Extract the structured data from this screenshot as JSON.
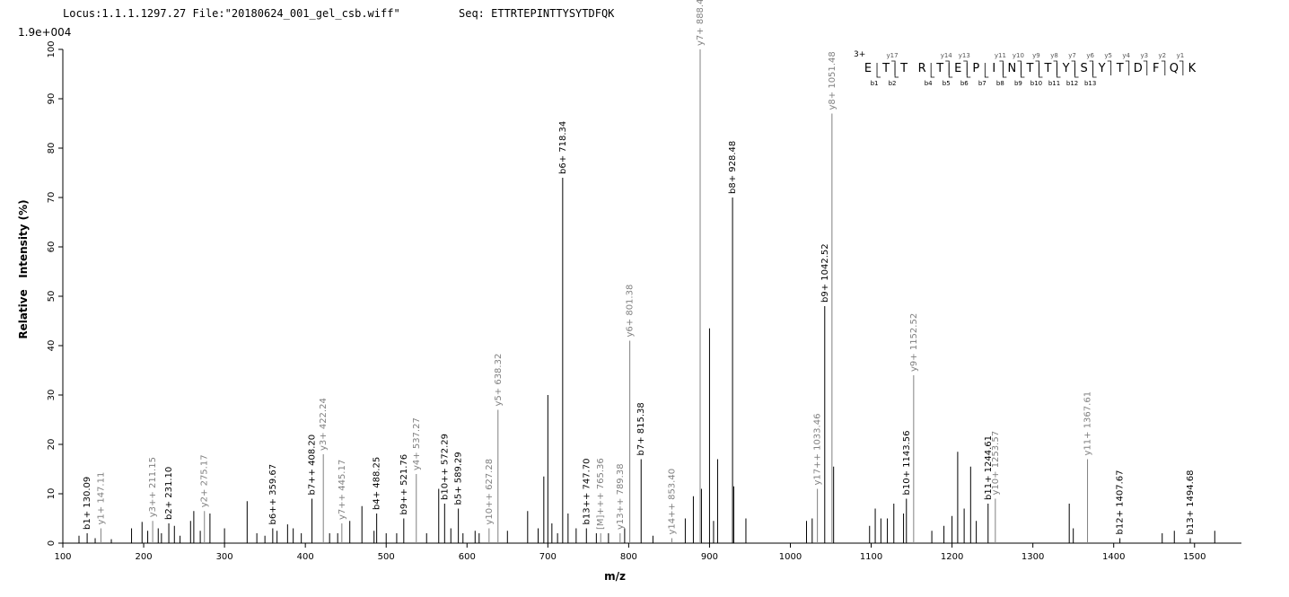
{
  "chart_data": {
    "type": "spectrum",
    "header_left": "Locus:1.1.1.1297.27 File:\"20180624_001_gel_csb.wiff\"",
    "header_right": "Seq: ETTRTEPINTTYSYTDFQK",
    "scale_label": "1.9e+004",
    "xlabel": "m/z",
    "ylabel": "Relative   Intensity (%)",
    "xlim": [
      100,
      1558
    ],
    "ylim": [
      0,
      100
    ],
    "xticks": [
      100,
      200,
      300,
      400,
      500,
      600,
      700,
      800,
      900,
      1000,
      1100,
      1200,
      1300,
      1400,
      1500
    ],
    "yticks": [
      0,
      10,
      20,
      30,
      40,
      50,
      60,
      70,
      80,
      90,
      100
    ],
    "peaks": [
      {
        "label": "b1+ 130.09",
        "x": 130.09,
        "value": 2,
        "color": "#000000"
      },
      {
        "label": "y1+ 147.11",
        "x": 147.11,
        "value": 3,
        "color": "#808080"
      },
      {
        "label": "y3++ 211.15",
        "x": 211.15,
        "value": 4.5,
        "color": "#808080"
      },
      {
        "label": "b2+ 231.10",
        "x": 231.1,
        "value": 4,
        "color": "#000000"
      },
      {
        "label": "y2+ 275.17",
        "x": 275.17,
        "value": 6.5,
        "color": "#808080"
      },
      {
        "label": "b6++ 359.67",
        "x": 359.67,
        "value": 3,
        "color": "#000000"
      },
      {
        "label": "b7++ 408.20",
        "x": 408.2,
        "value": 9,
        "color": "#000000"
      },
      {
        "label": "y3+ 422.24",
        "x": 422.24,
        "value": 18,
        "color": "#808080"
      },
      {
        "label": "y7++ 445.17",
        "x": 445.17,
        "value": 4,
        "color": "#808080"
      },
      {
        "label": "b4+ 488.25",
        "x": 488.25,
        "value": 6,
        "color": "#000000"
      },
      {
        "label": "b9++ 521.76",
        "x": 521.76,
        "value": 5,
        "color": "#000000"
      },
      {
        "label": "y4+ 537.27",
        "x": 537.27,
        "value": 14,
        "color": "#808080"
      },
      {
        "label": "b10++ 572.29",
        "x": 572.29,
        "value": 8,
        "color": "#000000"
      },
      {
        "label": "b5+ 589.29",
        "x": 589.29,
        "value": 7,
        "color": "#000000"
      },
      {
        "label": "y10++ 627.28",
        "x": 627.28,
        "value": 3,
        "color": "#808080"
      },
      {
        "label": "y5+ 638.32",
        "x": 638.32,
        "value": 27,
        "color": "#808080"
      },
      {
        "label": "b6+ 718.34",
        "x": 718.34,
        "value": 74,
        "color": "#000000"
      },
      {
        "label": "b13++ 747.70",
        "x": 747.7,
        "value": 3,
        "color": "#000000"
      },
      {
        "label": "[M]+++ 765.36",
        "x": 765.36,
        "value": 2,
        "color": "#808080"
      },
      {
        "label": "y13++ 789.38",
        "x": 789.38,
        "value": 2,
        "color": "#808080"
      },
      {
        "label": "y6+ 801.38",
        "x": 801.38,
        "value": 41,
        "color": "#808080"
      },
      {
        "label": "b7+ 815.38",
        "x": 815.38,
        "value": 17,
        "color": "#000000"
      },
      {
        "label": "y14++ 853.40",
        "x": 853.4,
        "value": 1,
        "color": "#808080"
      },
      {
        "label": "y7+ 888.41",
        "x": 888.41,
        "value": 100,
        "color": "#808080"
      },
      {
        "label": "b8+ 928.48",
        "x": 928.48,
        "value": 70,
        "color": "#000000"
      },
      {
        "label": "y17++ 1033.46",
        "x": 1033.46,
        "value": 11,
        "color": "#808080"
      },
      {
        "label": "b9+ 1042.52",
        "x": 1042.52,
        "value": 48,
        "color": "#000000"
      },
      {
        "label": "y8+ 1051.48",
        "x": 1051.48,
        "value": 87,
        "color": "#808080"
      },
      {
        "label": "b10+ 1143.56",
        "x": 1143.56,
        "value": 9,
        "color": "#000000"
      },
      {
        "label": "y9+ 1152.52",
        "x": 1152.52,
        "value": 34,
        "color": "#808080"
      },
      {
        "label": "b11+ 1244.61",
        "x": 1244.61,
        "value": 8,
        "color": "#000000"
      },
      {
        "label": "y10+ 1253.57",
        "x": 1253.57,
        "value": 9,
        "color": "#808080"
      },
      {
        "label": "y11+ 1367.61",
        "x": 1367.61,
        "value": 17,
        "color": "#808080"
      },
      {
        "label": "b12+ 1407.67",
        "x": 1407.67,
        "value": 1,
        "color": "#000000"
      },
      {
        "label": "b13+ 1494.68",
        "x": 1494.68,
        "value": 1,
        "color": "#000000"
      }
    ],
    "unlabeled_peaks": {
      "color": "#000000",
      "x": [
        120,
        140,
        160,
        185,
        198,
        205,
        218,
        222,
        238,
        245,
        258,
        262,
        270,
        282,
        300,
        328,
        340,
        350,
        365,
        378,
        385,
        395,
        430,
        440,
        455,
        470,
        485,
        500,
        513,
        550,
        565,
        580,
        595,
        610,
        615,
        650,
        675,
        688,
        695,
        700,
        705,
        712,
        725,
        735,
        760,
        775,
        795,
        830,
        870,
        880,
        890,
        900,
        905,
        910,
        930,
        945,
        1020,
        1027,
        1053.5,
        1098,
        1105,
        1112,
        1120,
        1128,
        1140,
        1175,
        1190,
        1200,
        1207,
        1215,
        1223,
        1230,
        1345,
        1350,
        1460,
        1475,
        1525
      ],
      "values": [
        1.5,
        1,
        0.8,
        3,
        4.3,
        2.5,
        3,
        2,
        3.5,
        1.5,
        4.5,
        6.5,
        2.5,
        6,
        3,
        8.5,
        2,
        1.5,
        2.5,
        3.8,
        3,
        2,
        2,
        2,
        4.5,
        7.5,
        2.5,
        2,
        2,
        2,
        11,
        3,
        2,
        2.5,
        2,
        2.5,
        6.5,
        3,
        13.5,
        30,
        4,
        2,
        6,
        3,
        2,
        2,
        3,
        1.5,
        5,
        9.5,
        11,
        43.5,
        4.5,
        17,
        11.5,
        5,
        4.5,
        5,
        15.5,
        3.5,
        7,
        5,
        5,
        8,
        6,
        2.5,
        3.5,
        5.5,
        18.5,
        7,
        15.5,
        4.5,
        8,
        3,
        2,
        2.5,
        2.5
      ]
    },
    "sequence_annotation": {
      "charge": "3+",
      "residues": [
        "E",
        "T",
        "T",
        "R",
        "T",
        "E",
        "P",
        "I",
        "N",
        "T",
        "T",
        "Y",
        "S",
        "Y",
        "T",
        "D",
        "F",
        "Q",
        "K"
      ],
      "y_ions": [
        "y17",
        "y14",
        "y13",
        "y11",
        "y10",
        "y9",
        "y8",
        "y7",
        "y6",
        "y5",
        "y4",
        "y3",
        "y2",
        "y1"
      ],
      "b_ions": [
        "b1",
        "b2",
        "b4",
        "b5",
        "b6",
        "b7",
        "b8",
        "b9",
        "b10",
        "b11",
        "b12",
        "b13"
      ]
    }
  }
}
